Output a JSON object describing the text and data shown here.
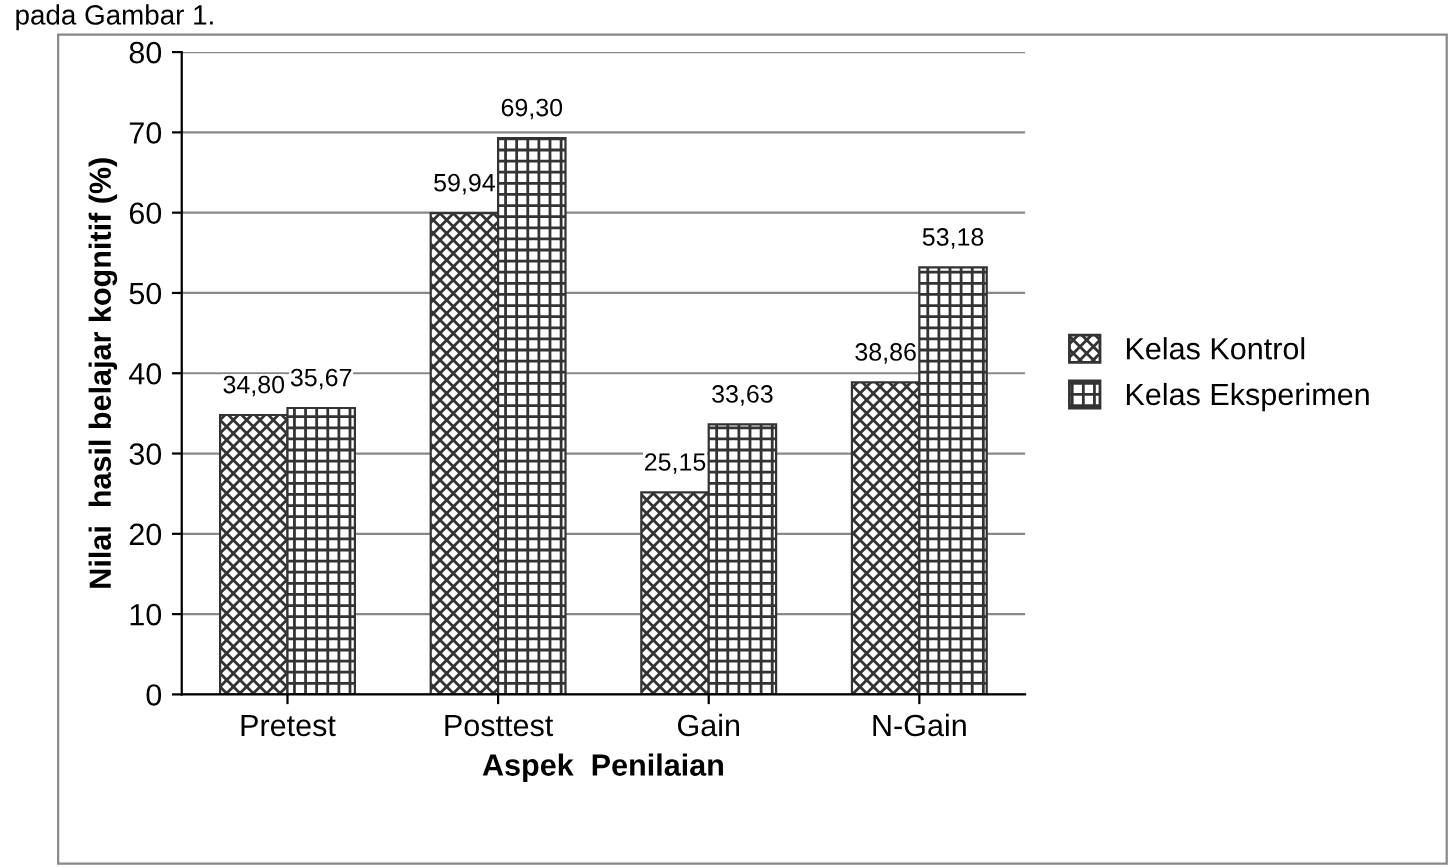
{
  "chart_data": {
    "type": "bar",
    "xlabel": "Aspek  Penilaian",
    "ylabel": "Nilai  hasil belajar kognitif (%)",
    "annotations": [
      "pada Gambar 1."
    ],
    "categories": [
      "Pretest",
      "Posttest",
      "Gain",
      "N-Gain"
    ],
    "series": [
      {
        "name": "Kelas Kontrol",
        "color": "#333333",
        "values": [
          34.8,
          59.94,
          25.15,
          38.86
        ],
        "value_labels": [
          "34,80",
          "59,94",
          "25,15",
          "38,86"
        ]
      },
      {
        "name": "Kelas Eksperimen",
        "color": "#333333",
        "values": [
          35.67,
          69.3,
          33.63,
          53.18
        ],
        "value_labels": [
          "35,67",
          "69,30",
          "33,63",
          "53,18"
        ]
      }
    ],
    "ylim": [
      0,
      80
    ],
    "yticks": [
      0,
      10,
      20,
      30,
      40,
      50,
      60,
      70,
      80
    ],
    "grid": "y",
    "legend": "right"
  }
}
